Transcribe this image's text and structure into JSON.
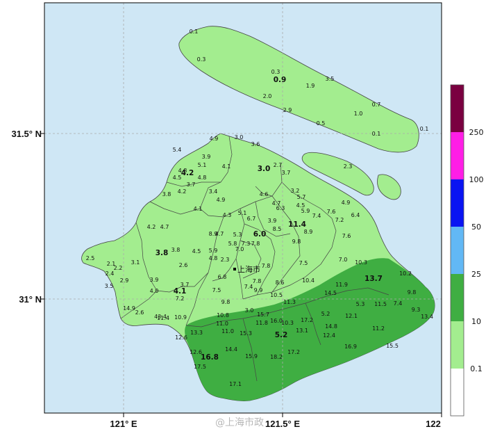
{
  "map": {
    "city_label": "上海市",
    "x_ticks": [
      "121° E",
      "121.5° E",
      "122"
    ],
    "y_ticks": [
      "31.5° N",
      "31° N"
    ],
    "watermark": "@上海市政"
  },
  "colors": {
    "water": "#cfe7f5",
    "light_green": "#a3ed8f",
    "dark_green": "#3fae42",
    "boundary": "#444444",
    "frame": "#000000"
  },
  "legend": {
    "labels": [
      "250",
      "100",
      "50",
      "25",
      "10",
      "0.1"
    ],
    "bins": [
      {
        "color": "#7a0040"
      },
      {
        "color": "#ff1ee6"
      },
      {
        "color": "#0a14f2"
      },
      {
        "color": "#62b8f5"
      },
      {
        "color": "#3fae42"
      },
      {
        "color": "#a3ed8f"
      },
      {
        "color": "#ffffff"
      }
    ]
  },
  "stations": [
    {
      "v": "0.1"
    },
    {
      "v": "0.3"
    },
    {
      "v": "0.3"
    },
    {
      "v": "0.9"
    },
    {
      "v": "3.5"
    },
    {
      "v": "1.9"
    },
    {
      "v": "2.0"
    },
    {
      "v": "0.7"
    },
    {
      "v": "2.9"
    },
    {
      "v": "1.0"
    },
    {
      "v": "0.5"
    },
    {
      "v": "0.1"
    },
    {
      "v": "0.1"
    },
    {
      "v": "4.9"
    },
    {
      "v": "3.0"
    },
    {
      "v": "3.6"
    },
    {
      "v": "5.4"
    },
    {
      "v": "3.9"
    },
    {
      "v": "5.1"
    },
    {
      "v": "4.1"
    },
    {
      "v": "4.2"
    },
    {
      "v": "3.0"
    },
    {
      "v": "2.7"
    },
    {
      "v": "4.5"
    },
    {
      "v": "4.8"
    },
    {
      "v": "4.8"
    },
    {
      "v": "2.3"
    },
    {
      "v": "3.7"
    },
    {
      "v": "4.2"
    },
    {
      "v": "3.8"
    },
    {
      "v": "3.7"
    },
    {
      "v": "3.4"
    },
    {
      "v": "4.6"
    },
    {
      "v": "3.2"
    },
    {
      "v": "4.9"
    },
    {
      "v": "4.7"
    },
    {
      "v": "5.7"
    },
    {
      "v": "4.1"
    },
    {
      "v": "6.3"
    },
    {
      "v": "4.5"
    },
    {
      "v": "4.9"
    },
    {
      "v": "7.6"
    },
    {
      "v": "4.3"
    },
    {
      "v": "5.1"
    },
    {
      "v": "5.9"
    },
    {
      "v": "7.4"
    },
    {
      "v": "6.7"
    },
    {
      "v": "3.9"
    },
    {
      "v": "7.2"
    },
    {
      "v": "6.4"
    },
    {
      "v": "11.4"
    },
    {
      "v": "4.2"
    },
    {
      "v": "4.7"
    },
    {
      "v": "8.5"
    },
    {
      "v": "8.9"
    },
    {
      "v": "6.0"
    },
    {
      "v": "8.9"
    },
    {
      "v": "4.7"
    },
    {
      "v": "5.3"
    },
    {
      "v": "7.6"
    },
    {
      "v": "5.8"
    },
    {
      "v": "7.3"
    },
    {
      "v": "7.8"
    },
    {
      "v": "9.8"
    },
    {
      "v": "3.8"
    },
    {
      "v": "3.8"
    },
    {
      "v": "4.5"
    },
    {
      "v": "5.9"
    },
    {
      "v": "7.0"
    },
    {
      "v": "2.5"
    },
    {
      "v": "3.1"
    },
    {
      "v": "2.3"
    },
    {
      "v": "4.8"
    },
    {
      "v": "7.0"
    },
    {
      "v": "2.1"
    },
    {
      "v": "2.6"
    },
    {
      "v": "7.5"
    },
    {
      "v": "2.2"
    },
    {
      "v": "7.8"
    },
    {
      "v": "2.4"
    },
    {
      "v": "6.8"
    },
    {
      "v": "3.9"
    },
    {
      "v": "7.8"
    },
    {
      "v": "8.6"
    },
    {
      "v": "2.9"
    },
    {
      "v": "7.4"
    },
    {
      "v": "3.7"
    },
    {
      "v": "10.4"
    },
    {
      "v": "10.3"
    },
    {
      "v": "13.7"
    },
    {
      "v": "10.2"
    },
    {
      "v": "3.5"
    },
    {
      "v": "4.0"
    },
    {
      "v": "4.1"
    },
    {
      "v": "7.5"
    },
    {
      "v": "9.9"
    },
    {
      "v": "10.5"
    },
    {
      "v": "11.9"
    },
    {
      "v": "9.8"
    },
    {
      "v": "43.4"
    },
    {
      "v": "7.2"
    },
    {
      "v": "9.8"
    },
    {
      "v": "11.3"
    },
    {
      "v": "14.5"
    },
    {
      "v": "5.3"
    },
    {
      "v": "11.5"
    },
    {
      "v": "7.4"
    },
    {
      "v": "14.9"
    },
    {
      "v": "2.6"
    },
    {
      "v": "3.0"
    },
    {
      "v": "10.8"
    },
    {
      "v": "15.7"
    },
    {
      "v": "17.2"
    },
    {
      "v": "12.1"
    },
    {
      "v": "5.2"
    },
    {
      "v": "5.2"
    },
    {
      "v": "10.3"
    },
    {
      "v": "9.3"
    },
    {
      "v": "13.4"
    },
    {
      "v": "11.4"
    },
    {
      "v": "10.9"
    },
    {
      "v": "11.0"
    },
    {
      "v": "11.0"
    },
    {
      "v": "11.8"
    },
    {
      "v": "16.0"
    },
    {
      "v": "14.8"
    },
    {
      "v": "11.2"
    },
    {
      "v": "12.6"
    },
    {
      "v": "13.3"
    },
    {
      "v": "15.3"
    },
    {
      "v": "13.1"
    },
    {
      "v": "12.4"
    },
    {
      "v": "15.5"
    },
    {
      "v": "16.9"
    },
    {
      "v": "12.6"
    },
    {
      "v": "14.4"
    },
    {
      "v": "17.2"
    },
    {
      "v": "16.8"
    },
    {
      "v": "15.9"
    },
    {
      "v": "18.2"
    },
    {
      "v": "17.5"
    },
    {
      "v": "17.1"
    }
  ]
}
